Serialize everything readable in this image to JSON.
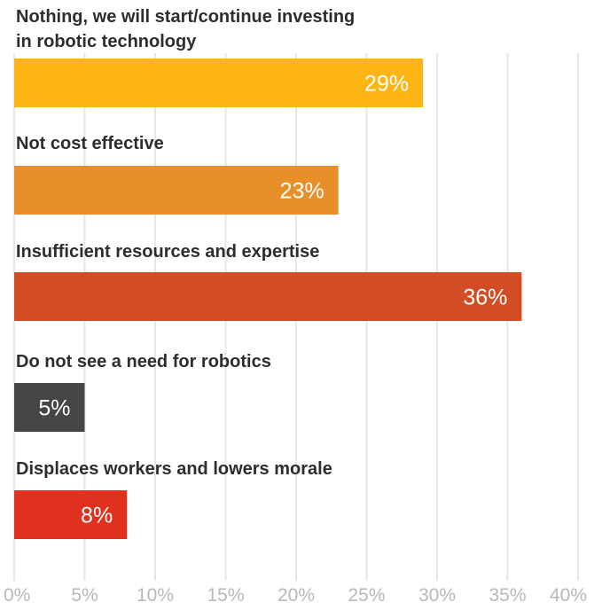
{
  "chart_data": {
    "type": "bar",
    "orientation": "horizontal",
    "title": "",
    "xlabel": "",
    "ylabel": "",
    "categories": [
      [
        "Nothing, we will start/continue investing",
        "in robotic technology"
      ],
      [
        "Not cost effective"
      ],
      [
        "Insufficient resources and expertise"
      ],
      [
        "Do not see a need for robotics"
      ],
      [
        "Displaces workers and lowers morale"
      ]
    ],
    "values": [
      29,
      23,
      36,
      5,
      8
    ],
    "value_labels": [
      "29%",
      "23%",
      "36%",
      "5%",
      "8%"
    ],
    "colors": [
      "#fdb515",
      "#e98f2a",
      "#d24d26",
      "#464646",
      "#e0301e"
    ],
    "xlim": [
      0,
      40
    ],
    "ticks": [
      0,
      5,
      10,
      15,
      20,
      25,
      30,
      35,
      40
    ],
    "tick_labels": [
      "0%",
      "5%",
      "10%",
      "15%",
      "20%",
      "25%",
      "30%",
      "35%",
      "40%"
    ],
    "grid": true,
    "legend": "none"
  }
}
